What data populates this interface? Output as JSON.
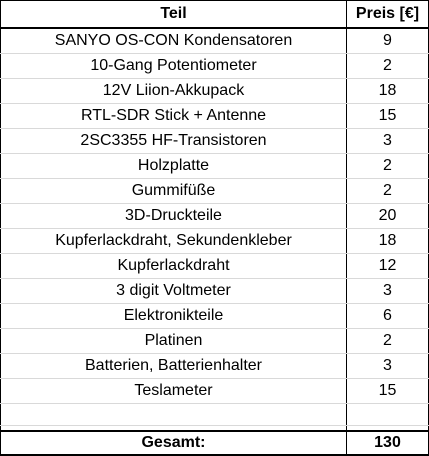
{
  "table": {
    "header": {
      "part": "Teil",
      "price": "Preis [€]"
    },
    "rows": [
      {
        "part": "SANYO OS-CON Kondensatoren",
        "price": "9"
      },
      {
        "part": "10-Gang Potentiometer",
        "price": "2"
      },
      {
        "part": "12V Liion-Akkupack",
        "price": "18"
      },
      {
        "part": "RTL-SDR Stick + Antenne",
        "price": "15"
      },
      {
        "part": "2SC3355 HF-Transistoren",
        "price": "3"
      },
      {
        "part": "Holzplatte",
        "price": "2"
      },
      {
        "part": "Gummifüße",
        "price": "2"
      },
      {
        "part": "3D-Druckteile",
        "price": "20"
      },
      {
        "part": "Kupferlackdraht, Sekundenkleber",
        "price": "18"
      },
      {
        "part": "Kupferlackdraht",
        "price": "12"
      },
      {
        "part": "3 digit Voltmeter",
        "price": "3"
      },
      {
        "part": "Elektronikteile",
        "price": "6"
      },
      {
        "part": "Platinen",
        "price": "2"
      },
      {
        "part": "Batterien, Batterienhalter",
        "price": "3"
      },
      {
        "part": "Teslameter",
        "price": "15"
      }
    ],
    "total": {
      "label": "Gesamt:",
      "value": "130"
    }
  }
}
